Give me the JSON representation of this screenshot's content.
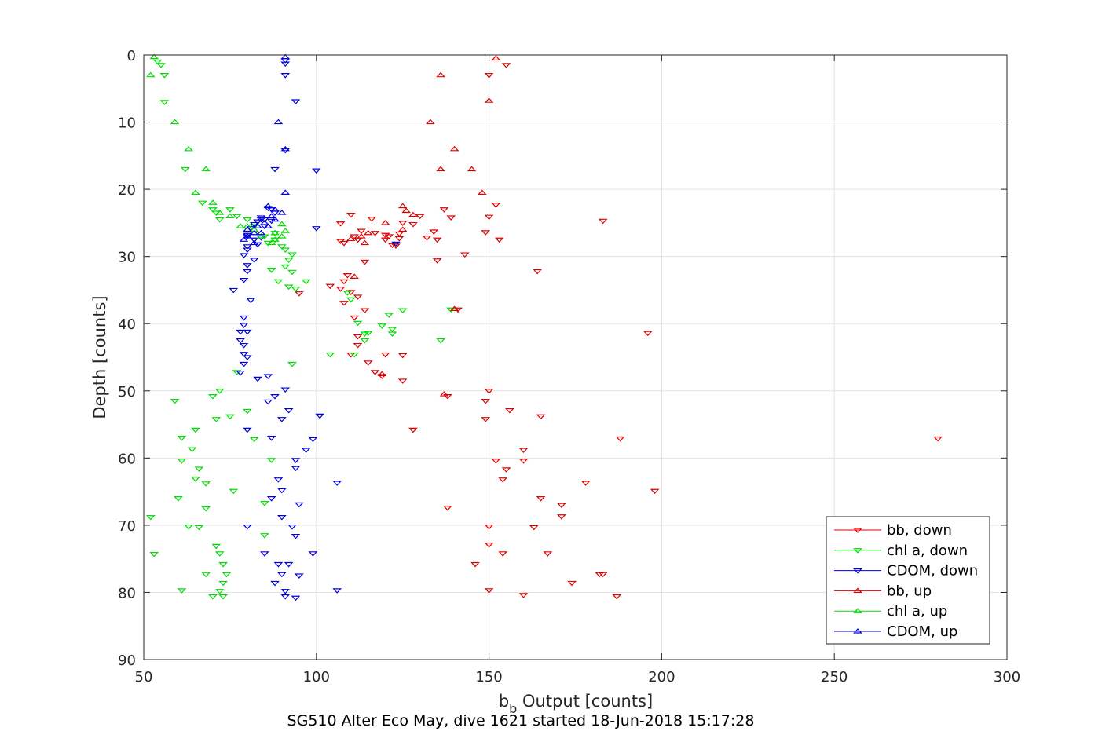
{
  "chart_data": {
    "type": "scatter",
    "xlabel_main": "b",
    "xlabel_sub": "b",
    "xlabel_rest": " Output [counts]",
    "ylabel": "Depth [counts]",
    "caption": "SG510 Alter Eco May, dive 1621 started 18-Jun-2018 15:17:28",
    "xlim": [
      50,
      300
    ],
    "ylim": [
      0,
      90
    ],
    "y_reversed": true,
    "grid": true,
    "legend_position": "bottom-right",
    "xticks": [
      50,
      100,
      150,
      200,
      250,
      300
    ],
    "yticks": [
      0,
      10,
      20,
      30,
      40,
      50,
      60,
      70,
      80,
      90
    ],
    "series": [
      {
        "name": "bb, down",
        "color": "#dd0000",
        "marker": "down",
        "points": [
          [
            155,
            1.5
          ],
          [
            150,
            3
          ],
          [
            152,
            22.3
          ],
          [
            183,
            24.7
          ],
          [
            150,
            24.1
          ],
          [
            153,
            27.5
          ],
          [
            143,
            29.7
          ],
          [
            135,
            30.6
          ],
          [
            164,
            32.2
          ],
          [
            141,
            37.9
          ],
          [
            196,
            41.4
          ],
          [
            120,
            44.6
          ],
          [
            125,
            44.7
          ],
          [
            115,
            45.8
          ],
          [
            117,
            47.2
          ],
          [
            119,
            47.8
          ],
          [
            125,
            48.5
          ],
          [
            150,
            50
          ],
          [
            149,
            51.5
          ],
          [
            138,
            50.8
          ],
          [
            156,
            52.9
          ],
          [
            165,
            53.8
          ],
          [
            149,
            54.2
          ],
          [
            128,
            55.8
          ],
          [
            188,
            57.1
          ],
          [
            160,
            58.8
          ],
          [
            152,
            60.4
          ],
          [
            160,
            60.4
          ],
          [
            155,
            61.7
          ],
          [
            154,
            63.2
          ],
          [
            178,
            63.7
          ],
          [
            198,
            64.9
          ],
          [
            165,
            66
          ],
          [
            171,
            67
          ],
          [
            138,
            67.4
          ],
          [
            171,
            68.7
          ],
          [
            150,
            70.2
          ],
          [
            163,
            70.3
          ],
          [
            150,
            72.9
          ],
          [
            154,
            74.2
          ],
          [
            167,
            74.2
          ],
          [
            146,
            75.8
          ],
          [
            174,
            78.6
          ],
          [
            182,
            77.3
          ],
          [
            183,
            77.3
          ],
          [
            150,
            79.7
          ],
          [
            160,
            80.4
          ],
          [
            187,
            80.6
          ],
          [
            280,
            57.1
          ],
          [
            110,
            23.8
          ],
          [
            116,
            24.4
          ],
          [
            130,
            24
          ],
          [
            128,
            25.2
          ],
          [
            132,
            27.2
          ],
          [
            134,
            26.3
          ],
          [
            125,
            25
          ],
          [
            124,
            26.6
          ],
          [
            120,
            26.8
          ],
          [
            117,
            26.5
          ],
          [
            111,
            27
          ],
          [
            112,
            27.5
          ],
          [
            107,
            27.7
          ],
          [
            108,
            28
          ],
          [
            114,
            30.8
          ],
          [
            109,
            32.8
          ],
          [
            108,
            33.7
          ],
          [
            104,
            34.4
          ],
          [
            107,
            34.8
          ],
          [
            110,
            35.3
          ],
          [
            112,
            36
          ],
          [
            108,
            36.9
          ],
          [
            114,
            38
          ],
          [
            111,
            39.1
          ],
          [
            112,
            41.9
          ],
          [
            112,
            43.2
          ],
          [
            110,
            44.6
          ],
          [
            95,
            35.5
          ],
          [
            107,
            25.1
          ],
          [
            113,
            26.2
          ],
          [
            121,
            27
          ],
          [
            124,
            27.3
          ],
          [
            120,
            27.5
          ],
          [
            122,
            28.3
          ],
          [
            135,
            27.5
          ],
          [
            139,
            24.2
          ],
          [
            137,
            23
          ],
          [
            149,
            26.4
          ],
          [
            123,
            28.4
          ]
        ]
      },
      {
        "name": "chl a, down",
        "color": "#00dd00",
        "marker": "down",
        "points": [
          [
            54,
            1
          ],
          [
            55,
            1.5
          ],
          [
            56,
            3
          ],
          [
            56,
            7
          ],
          [
            62,
            17
          ],
          [
            67,
            22
          ],
          [
            70,
            23
          ],
          [
            71,
            23.5
          ],
          [
            72,
            24.5
          ],
          [
            75,
            23
          ],
          [
            77,
            24
          ],
          [
            80,
            24.5
          ],
          [
            82,
            25.5
          ],
          [
            85,
            27
          ],
          [
            88,
            27.5
          ],
          [
            88,
            26.5
          ],
          [
            86,
            28
          ],
          [
            90,
            28.5
          ],
          [
            91,
            29
          ],
          [
            93,
            29.7
          ],
          [
            92,
            30.5
          ],
          [
            91,
            31.5
          ],
          [
            87,
            32
          ],
          [
            93,
            32.3
          ],
          [
            89,
            33.7
          ],
          [
            97,
            33.7
          ],
          [
            92,
            34.5
          ],
          [
            94,
            34.8
          ],
          [
            109,
            35.4
          ],
          [
            110,
            36.4
          ],
          [
            112,
            39.9
          ],
          [
            119,
            40.3
          ],
          [
            115,
            41.4
          ],
          [
            114,
            41.5
          ],
          [
            114,
            42.5
          ],
          [
            104,
            44.6
          ],
          [
            111,
            44.6
          ],
          [
            121,
            38.7
          ],
          [
            122,
            41.5
          ],
          [
            122,
            40.8
          ],
          [
            125,
            38
          ],
          [
            136,
            42.5
          ],
          [
            139,
            37.9
          ],
          [
            93,
            46
          ],
          [
            77,
            47.2
          ],
          [
            72,
            50
          ],
          [
            70,
            50.8
          ],
          [
            59,
            51.5
          ],
          [
            75,
            53.8
          ],
          [
            71,
            54.2
          ],
          [
            65,
            55.8
          ],
          [
            80,
            53
          ],
          [
            82,
            57.2
          ],
          [
            61,
            57
          ],
          [
            64,
            58.7
          ],
          [
            61,
            60.4
          ],
          [
            66,
            61.6
          ],
          [
            65,
            63.1
          ],
          [
            68,
            63.8
          ],
          [
            76,
            64.9
          ],
          [
            60,
            66
          ],
          [
            68,
            67.5
          ],
          [
            52,
            68.8
          ],
          [
            63,
            70.2
          ],
          [
            66,
            70.3
          ],
          [
            71,
            73.1
          ],
          [
            72,
            74.2
          ],
          [
            53,
            74.3
          ],
          [
            73,
            75.8
          ],
          [
            74,
            77.3
          ],
          [
            68,
            77.3
          ],
          [
            73,
            78.6
          ],
          [
            61,
            79.7
          ],
          [
            72,
            79.8
          ],
          [
            70,
            80.6
          ],
          [
            73,
            80.6
          ],
          [
            85,
            66.7
          ],
          [
            85,
            71.5
          ],
          [
            87,
            60.3
          ],
          [
            87,
            32
          ]
        ]
      },
      {
        "name": "CDOM, down",
        "color": "#0000dd",
        "marker": "down",
        "points": [
          [
            91,
            0.8
          ],
          [
            91,
            1.3
          ],
          [
            91,
            3
          ],
          [
            88,
            17
          ],
          [
            86,
            22.8
          ],
          [
            88,
            23.5
          ],
          [
            84,
            24.2
          ],
          [
            83,
            24.8
          ],
          [
            85,
            25.5
          ],
          [
            87,
            24.7
          ],
          [
            82,
            25.2
          ],
          [
            81,
            25.8
          ],
          [
            84,
            27.2
          ],
          [
            80,
            26.8
          ],
          [
            80,
            27
          ],
          [
            82,
            27.5
          ],
          [
            83,
            28.2
          ],
          [
            80,
            28.5
          ],
          [
            80,
            29
          ],
          [
            79,
            29.8
          ],
          [
            82,
            30.5
          ],
          [
            80,
            31.3
          ],
          [
            80,
            32.2
          ],
          [
            79,
            33.5
          ],
          [
            76,
            35
          ],
          [
            81,
            36.5
          ],
          [
            79,
            39.1
          ],
          [
            79,
            40.2
          ],
          [
            78,
            41.2
          ],
          [
            80,
            41.2
          ],
          [
            78,
            42.5
          ],
          [
            79,
            43.2
          ],
          [
            79,
            44.5
          ],
          [
            80,
            45
          ],
          [
            79,
            46
          ],
          [
            78,
            47.3
          ],
          [
            83,
            48.2
          ],
          [
            86,
            47.8
          ],
          [
            91,
            49.8
          ],
          [
            88,
            50.8
          ],
          [
            86,
            51.6
          ],
          [
            92,
            52.9
          ],
          [
            90,
            54.2
          ],
          [
            80,
            55.8
          ],
          [
            87,
            57
          ],
          [
            99,
            57.2
          ],
          [
            97,
            58.8
          ],
          [
            94,
            60.3
          ],
          [
            94,
            61.5
          ],
          [
            89,
            63.2
          ],
          [
            106,
            63.7
          ],
          [
            90,
            64.8
          ],
          [
            87,
            66
          ],
          [
            95,
            66.9
          ],
          [
            90,
            68.8
          ],
          [
            80,
            70.2
          ],
          [
            93,
            70.2
          ],
          [
            94,
            71.6
          ],
          [
            99,
            74.2
          ],
          [
            85,
            74.2
          ],
          [
            89,
            75.8
          ],
          [
            92,
            75.8
          ],
          [
            90,
            77.3
          ],
          [
            95,
            77.5
          ],
          [
            88,
            78.6
          ],
          [
            91,
            79.8
          ],
          [
            106,
            79.7
          ],
          [
            91,
            80.6
          ],
          [
            94,
            80.8
          ],
          [
            100,
            25.8
          ],
          [
            101,
            53.7
          ],
          [
            100,
            17.2
          ],
          [
            91,
            14.2
          ],
          [
            94,
            6.9
          ],
          [
            123,
            28.1
          ],
          [
            84,
            24.5
          ],
          [
            87,
            23
          ],
          [
            85,
            24.5
          ]
        ]
      },
      {
        "name": "bb, up",
        "color": "#dd0000",
        "marker": "up",
        "points": [
          [
            152,
            0.5
          ],
          [
            136,
            3
          ],
          [
            150,
            6.8
          ],
          [
            133,
            10
          ],
          [
            136,
            17
          ],
          [
            140,
            14
          ],
          [
            145,
            17
          ],
          [
            148,
            20.5
          ],
          [
            125,
            22.5
          ],
          [
            126,
            23.2
          ],
          [
            128,
            23.8
          ],
          [
            120,
            25
          ],
          [
            125,
            26
          ],
          [
            115,
            26.5
          ],
          [
            110,
            27.4
          ],
          [
            113,
            27
          ],
          [
            114,
            28
          ],
          [
            111,
            33
          ],
          [
            140,
            37.8
          ],
          [
            119,
            47.5
          ],
          [
            137,
            50.5
          ]
        ]
      },
      {
        "name": "chl a, up",
        "color": "#00dd00",
        "marker": "up",
        "points": [
          [
            53,
            0.3
          ],
          [
            52,
            3
          ],
          [
            59,
            10
          ],
          [
            63,
            14
          ],
          [
            68,
            17
          ],
          [
            65,
            20.5
          ],
          [
            70,
            22
          ],
          [
            72,
            23.5
          ],
          [
            75,
            24
          ],
          [
            78,
            25.5
          ],
          [
            80,
            25.5
          ],
          [
            82,
            26
          ],
          [
            84,
            27
          ],
          [
            88,
            27.5
          ],
          [
            90,
            27
          ],
          [
            91,
            26.2
          ],
          [
            87,
            28
          ],
          [
            90,
            25.2
          ],
          [
            88,
            26.5
          ]
        ]
      },
      {
        "name": "CDOM, up",
        "color": "#0000dd",
        "marker": "up",
        "points": [
          [
            91,
            0.3
          ],
          [
            89,
            10
          ],
          [
            91,
            14
          ],
          [
            91,
            20.5
          ],
          [
            86,
            22.5
          ],
          [
            88,
            23
          ],
          [
            90,
            23.5
          ],
          [
            87,
            24
          ],
          [
            85,
            25
          ],
          [
            83,
            25.5
          ],
          [
            82,
            26.5
          ],
          [
            80,
            27
          ],
          [
            79,
            27.5
          ],
          [
            82,
            28
          ],
          [
            80,
            26
          ],
          [
            84,
            26.5
          ],
          [
            86,
            25.5
          ],
          [
            88,
            24.5
          ]
        ]
      }
    ]
  }
}
